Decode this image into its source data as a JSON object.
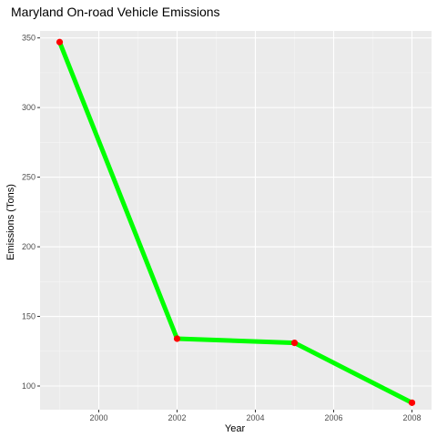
{
  "chart_data": {
    "type": "line",
    "title": "Maryland On-road Vehicle Emissions",
    "xlabel": "Year",
    "ylabel": "Emissions (Tons)",
    "xlim": [
      1998.5,
      2008.5
    ],
    "ylim": [
      83,
      355
    ],
    "x_ticks": [
      2000,
      2002,
      2004,
      2006,
      2008
    ],
    "y_ticks": [
      100,
      150,
      200,
      250,
      300,
      350
    ],
    "grid": true,
    "series": [
      {
        "x": [
          1999,
          2002,
          2005,
          2008
        ],
        "y": [
          347,
          134,
          131,
          88
        ],
        "line_color": "#00FF00",
        "point_color": "#FF0000"
      }
    ],
    "colors": {
      "panel_background": "#EBEBEB",
      "grid_major": "#FFFFFF",
      "grid_minor": "#F5F5F5"
    }
  }
}
